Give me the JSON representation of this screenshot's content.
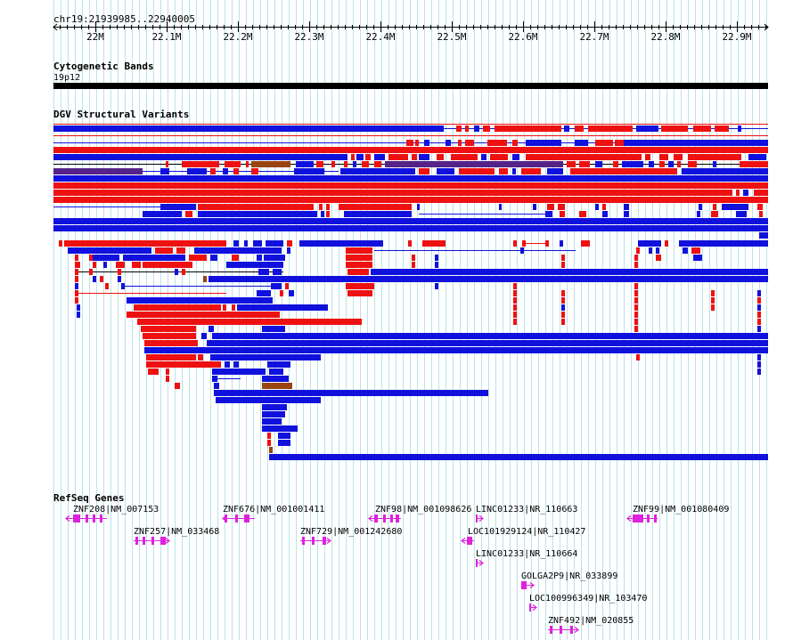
{
  "region": "chr19:21939985..22940005",
  "ruler": {
    "ticks": [
      "22M",
      "22.1M",
      "22.2M",
      "22.3M",
      "22.4M",
      "22.5M",
      "22.6M",
      "22.7M",
      "22.8M",
      "22.9M"
    ]
  },
  "tracks": {
    "cytoband": {
      "title": "Cytogenetic Bands",
      "band": "19p12",
      "color": "#000000"
    },
    "dgv": {
      "title": "DGV Structural Variants",
      "colors": {
        "loss": "#ee1111",
        "gain": "#1111dd",
        "both": "#552288",
        "inversion": "#994411"
      }
    },
    "refseq": {
      "title": "RefSeq Genes",
      "color": "#dd22dd",
      "genes": [
        {
          "label": "ZNF208|NM_007153",
          "strand": "-"
        },
        {
          "label": "ZNF257|NM_033468",
          "strand": "+"
        },
        {
          "label": "ZNF676|NM_001001411",
          "strand": "-"
        },
        {
          "label": "ZNF729|NM_001242680",
          "strand": "+"
        },
        {
          "label": "ZNF98|NM_001098626",
          "strand": "-"
        },
        {
          "label": "LINC01233|NR_110663",
          "strand": "+"
        },
        {
          "label": "LOC101929124|NR_110427",
          "strand": "-"
        },
        {
          "label": "LINC01233|NR_110664",
          "strand": "+"
        },
        {
          "label": "GOLGA2P9|NR_033899",
          "strand": "+"
        },
        {
          "label": "LOC100996349|NR_103470",
          "strand": "+"
        },
        {
          "label": "ZNF492|NM_020855",
          "strand": "+"
        },
        {
          "label": "ZNF99|NM_001080409",
          "strand": "-"
        }
      ]
    }
  }
}
